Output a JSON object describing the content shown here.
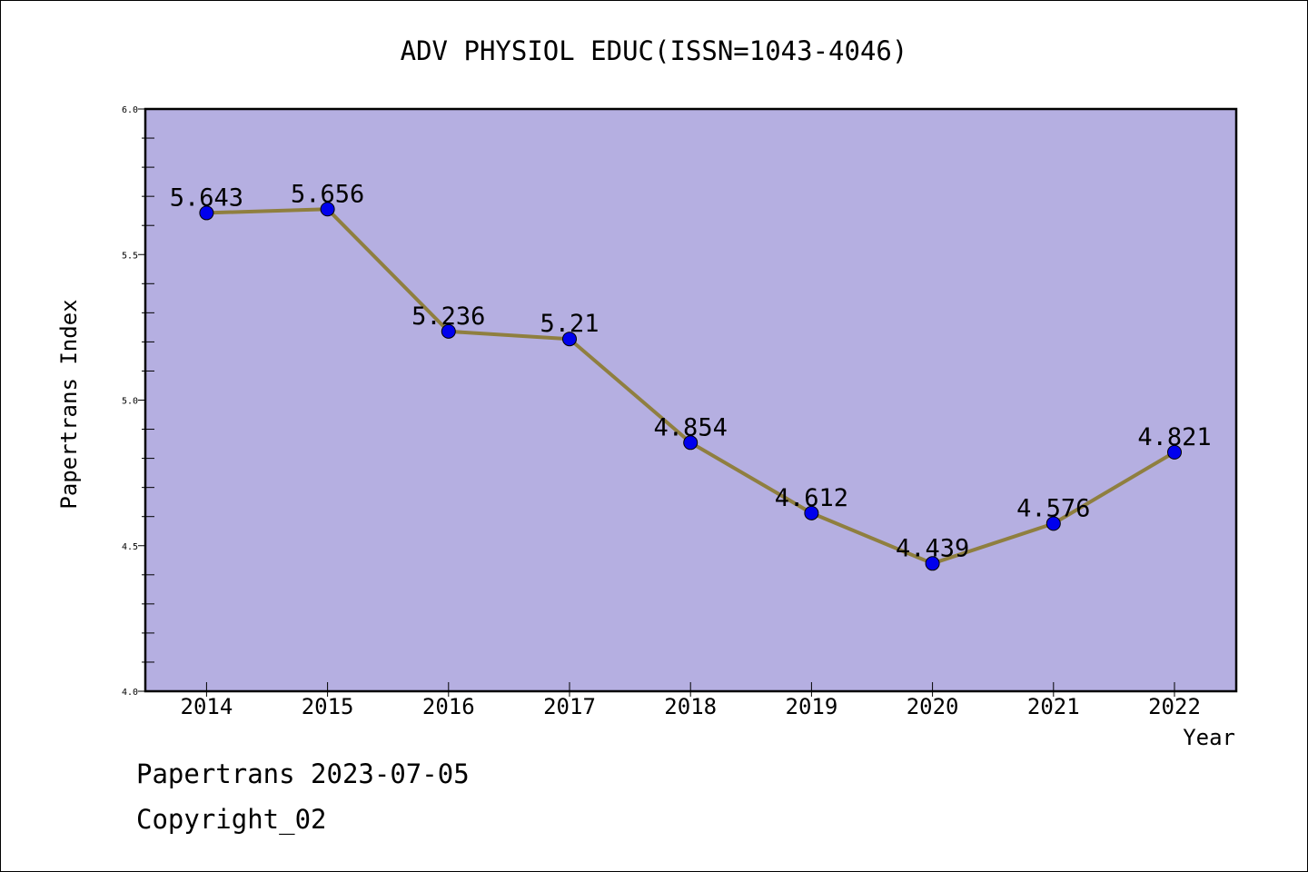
{
  "chart_data": {
    "type": "line",
    "title": "ADV PHYSIOL EDUC(ISSN=1043-4046)",
    "xlabel": "Year",
    "ylabel": "Papertrans Index",
    "categories": [
      "2014",
      "2015",
      "2016",
      "2017",
      "2018",
      "2019",
      "2020",
      "2021",
      "2022"
    ],
    "values": [
      5.643,
      5.656,
      5.236,
      5.21,
      4.854,
      4.612,
      4.439,
      4.576,
      4.821
    ],
    "data_labels": [
      "5.643",
      "5.656",
      "5.236",
      "5.21",
      "4.854",
      "4.612",
      "4.439",
      "4.576",
      "4.821"
    ],
    "ylim": [
      4.0,
      6.0
    ],
    "yticks": [
      "4.0",
      "4.5",
      "5.0",
      "5.5",
      "6.0"
    ],
    "grid": false,
    "colors": {
      "plot_background": "#b5afe1",
      "line": "#8f7f3f",
      "marker": "#0000ee"
    }
  },
  "footer": {
    "date_line": "Papertrans 2023-07-05",
    "copyright_line": "Copyright_02"
  }
}
